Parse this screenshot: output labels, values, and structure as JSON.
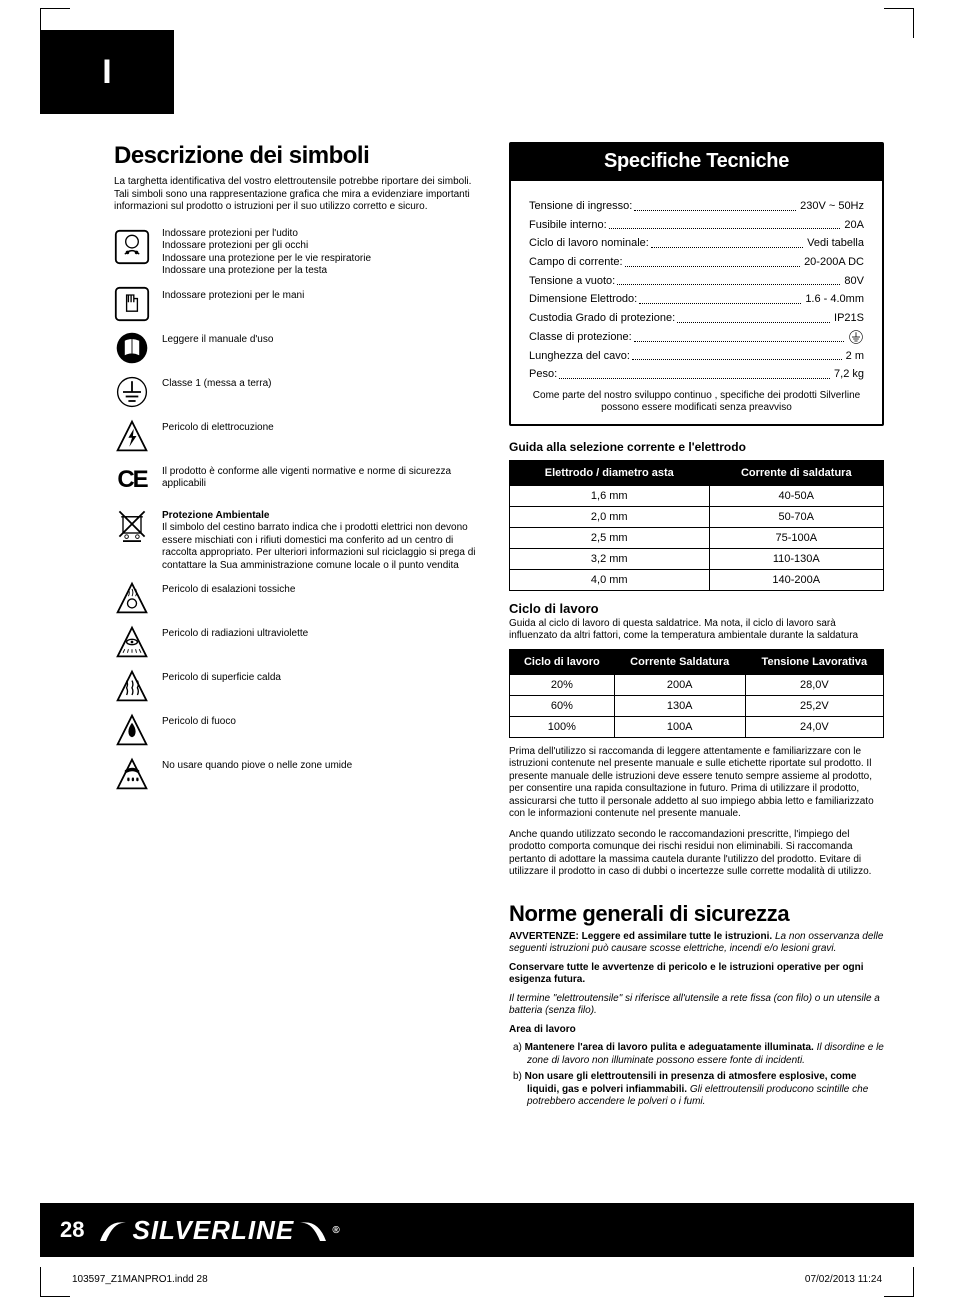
{
  "tab_letter": "I",
  "left": {
    "h1": "Descrizione dei simboli",
    "intro": "La targhetta identificativa del vostro elettroutensile potrebbe riportare dei simboli. Tali simboli sono una rappresentazione grafica che mira a evidenziare importanti informazioni sul prodotto o istruzioni per il suo utilizzo corretto e sicuro.",
    "symbols": [
      {
        "icon": "ppe",
        "text": "Indossare protezioni per l'udito\nIndossare protezioni per gli occhi\nIndossare una protezione per le vie respiratorie\nIndossare una protezione per la testa"
      },
      {
        "icon": "gloves",
        "text": "Indossare protezioni per le mani"
      },
      {
        "icon": "manual",
        "text": "Leggere il manuale d'uso"
      },
      {
        "icon": "ground",
        "text": "Classe 1 (messa a terra)"
      },
      {
        "icon": "shock",
        "text": "Pericolo di elettrocuzione"
      },
      {
        "icon": "ce",
        "text": "Il prodotto è conforme alle vigenti normative e norme di sicurezza applicabili"
      },
      {
        "icon": "weee",
        "bold": "Protezione Ambientale",
        "text": "Il simbolo del cestino barrato indica che i prodotti elettrici non devono essere mischiati con i rifiuti domestici ma conferito ad un centro di raccolta appropriato. Per ulteriori informazioni sul riciclaggio si prega di contattare la Sua amministrazione comune locale o il punto vendita"
      },
      {
        "icon": "fumes",
        "text": "Pericolo di  esalazioni tossiche"
      },
      {
        "icon": "uv",
        "text": "Pericolo di radiazioni ultraviolette"
      },
      {
        "icon": "hot",
        "text": "Pericolo  di superficie calda"
      },
      {
        "icon": "fire",
        "text": "Pericolo di fuoco"
      },
      {
        "icon": "wet",
        "text": "No usare quando piove o nelle zone umide"
      }
    ]
  },
  "spec": {
    "header": "Specifiche Tecniche",
    "rows": [
      {
        "label": "Tensione di ingresso:",
        "value": "230V ~ 50Hz"
      },
      {
        "label": "Fusibile interno:",
        "value": "20A"
      },
      {
        "label": "Ciclo di lavoro nominale:",
        "value": "Vedi tabella"
      },
      {
        "label": "Campo di corrente:",
        "value": "20-200A DC"
      },
      {
        "label": "Tensione a vuoto:",
        "value": "80V"
      },
      {
        "label": "Dimensione Elettrodo:",
        "value": "1.6 - 4.0mm"
      },
      {
        "label": "Custodia Grado di protezione:",
        "value": "IP21S"
      },
      {
        "label": "Classe di protezione:",
        "value": "⏚"
      },
      {
        "label": "Lunghezza del cavo:",
        "value": "2 m"
      },
      {
        "label": "Peso:",
        "value": "7,2 kg"
      }
    ],
    "note": "Come parte del nostro sviluppo continuo , specifiche dei prodotti Silverline possono essere modificati senza preavviso"
  },
  "guide_head": "Guida alla selezione corrente e l'elettrodo",
  "table1": {
    "columns": [
      "Elettrodo / diametro asta",
      "Corrente di saldatura"
    ],
    "rows": [
      [
        "1,6 mm",
        "40-50A"
      ],
      [
        "2,0 mm",
        "50-70A"
      ],
      [
        "2,5 mm",
        "75-100A"
      ],
      [
        "3,2 mm",
        "110-130A"
      ],
      [
        "4,0 mm",
        "140-200A"
      ]
    ]
  },
  "cycle_head": "Ciclo di lavoro",
  "cycle_intro": "Guida al ciclo di lavoro di questa saldatrice. Ma nota, il ciclo di lavoro sarà influenzato da altri fattori, come la temperatura ambientale durante la saldatura",
  "table2": {
    "columns": [
      "Ciclo di lavoro",
      "Corrente Saldatura",
      "Tensione Lavorativa"
    ],
    "rows": [
      [
        "20%",
        "200A",
        "28,0V"
      ],
      [
        "60%",
        "130A",
        "25,2V"
      ],
      [
        "100%",
        "100A",
        "24,0V"
      ]
    ]
  },
  "para1": "Prima dell'utilizzo si raccomanda di leggere attentamente e familiarizzare con le istruzioni contenute nel presente manuale e sulle etichette riportate sul prodotto. Il presente manuale delle istruzioni deve essere tenuto sempre assieme al prodotto, per consentire una rapida consultazione in futuro. Prima di utilizzare il prodotto, assicurarsi che tutto il personale addetto al suo impiego abbia letto e familiarizzato con le informazioni contenute nel presente manuale.",
  "para2": "Anche quando utilizzato secondo le raccomandazioni prescritte, l'impiego del prodotto comporta comunque dei rischi residui non eliminabili. Si raccomanda pertanto di adottare la massima cautela durante l'utilizzo del prodotto. Evitare di utilizzare il prodotto in caso di dubbi o incertezze sulle corrette modalità di utilizzo.",
  "h2": "Norme generali di sicurezza",
  "warn1_lead": "AVVERTENZE: Leggere ed assimilare tutte le istruzioni.",
  "warn1_ital": "La non osservanza delle seguenti istruzioni può causare scosse elettriche, incendi e/o lesioni gravi.",
  "warn2": "Conservare tutte le avvertenze di pericolo e le istruzioni operative per ogni esigenza futura.",
  "warn3": "Il termine \"elettroutensile\" si riferisce all'utensile a rete fissa (con filo) o un utensile a batteria (senza filo).",
  "area_head": "Area di lavoro",
  "items": [
    {
      "marker": "a)",
      "lead": "Mantenere l'area di lavoro pulita e adeguatamente illuminata.",
      "ital": "Il disordine e le zone di lavoro non illuminate possono essere fonte di incidenti."
    },
    {
      "marker": "b)",
      "lead": "Non usare gli elettroutensili in presenza di atmosfere esplosive, come liquidi, gas e polveri infiammabili.",
      "ital": "Gli elettroutensili producono scintille che potrebbero accendere le polveri o i fumi."
    }
  ],
  "page_num": "28",
  "logo_text": "SILVERLINE",
  "doc_file": "103597_Z1MANPRO1.indd   28",
  "doc_date": "07/02/2013   11:24"
}
